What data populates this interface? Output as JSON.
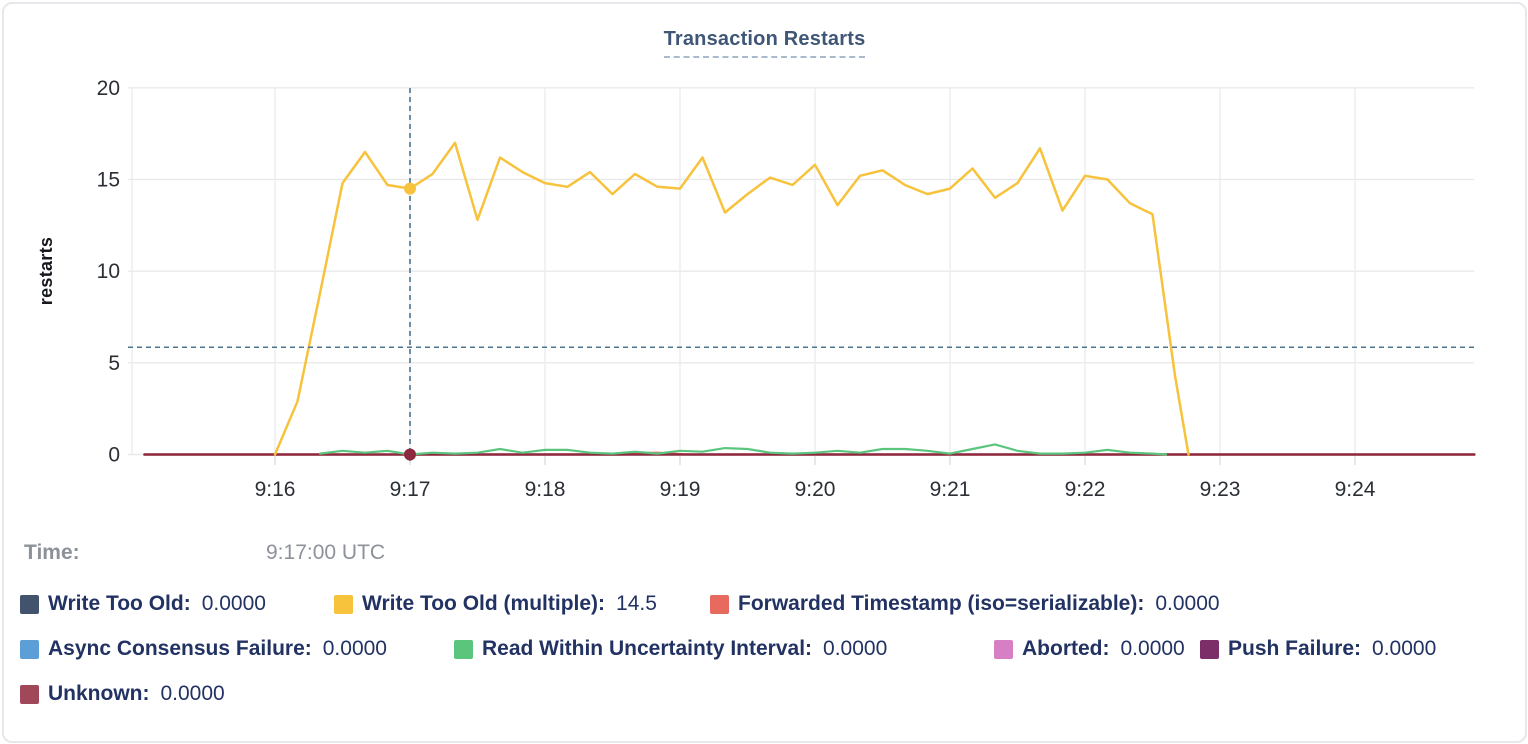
{
  "chart_data": {
    "type": "line",
    "title": "Transaction Restarts",
    "ylabel": "restarts",
    "ylim": [
      0,
      20
    ],
    "y_ticks": [
      0,
      5,
      10,
      15,
      20
    ],
    "x_ticks": [
      {
        "label": "9:16",
        "t": 60
      },
      {
        "label": "9:17",
        "t": 120
      },
      {
        "label": "9:18",
        "t": 180
      },
      {
        "label": "9:19",
        "t": 240
      },
      {
        "label": "9:20",
        "t": 300
      },
      {
        "label": "9:21",
        "t": 360
      },
      {
        "label": "9:22",
        "t": 420
      },
      {
        "label": "9:23",
        "t": 480
      },
      {
        "label": "9:24",
        "t": 540
      }
    ],
    "x_time_origin": "9:15:00 UTC",
    "grid": true,
    "legend_position": "bottom",
    "draw_order": [
      0,
      3,
      5,
      6,
      2,
      7,
      4,
      1
    ],
    "series": [
      {
        "name": "Write Too Old",
        "color": "#43536E",
        "stroke_width": 2,
        "points": [
          [
            2,
            0
          ],
          [
            593,
            0
          ]
        ]
      },
      {
        "name": "Write Too Old (multiple)",
        "color": "#F7C23C",
        "stroke_width": 2.5,
        "points": [
          [
            60,
            0
          ],
          [
            70,
            2.9
          ],
          [
            80,
            8.8
          ],
          [
            90,
            14.8
          ],
          [
            100,
            16.5
          ],
          [
            110,
            14.7
          ],
          [
            120,
            14.5
          ],
          [
            130,
            15.3
          ],
          [
            140,
            17
          ],
          [
            150,
            12.8
          ],
          [
            160,
            16.2
          ],
          [
            170,
            15.4
          ],
          [
            180,
            14.8
          ],
          [
            190,
            14.6
          ],
          [
            200,
            15.4
          ],
          [
            210,
            14.2
          ],
          [
            220,
            15.3
          ],
          [
            230,
            14.6
          ],
          [
            240,
            14.5
          ],
          [
            250,
            16.2
          ],
          [
            260,
            13.2
          ],
          [
            270,
            14.2
          ],
          [
            280,
            15.1
          ],
          [
            290,
            14.7
          ],
          [
            300,
            15.8
          ],
          [
            310,
            13.6
          ],
          [
            320,
            15.2
          ],
          [
            330,
            15.5
          ],
          [
            340,
            14.7
          ],
          [
            350,
            14.2
          ],
          [
            360,
            14.5
          ],
          [
            370,
            15.6
          ],
          [
            380,
            14
          ],
          [
            390,
            14.8
          ],
          [
            400,
            16.7
          ],
          [
            410,
            13.3
          ],
          [
            420,
            15.2
          ],
          [
            430,
            15
          ],
          [
            440,
            13.7
          ],
          [
            450,
            13.1
          ],
          [
            460,
            4.3
          ],
          [
            466,
            0
          ]
        ]
      },
      {
        "name": "Forwarded Timestamp (iso=serializable)",
        "color": "#E8695D",
        "stroke_width": 2.2,
        "points": [
          [
            2,
            0
          ],
          [
            216,
            0
          ],
          [
            222,
            0.08
          ],
          [
            230,
            0.1
          ],
          [
            238,
            0.04
          ],
          [
            244,
            0
          ],
          [
            593,
            0
          ]
        ]
      },
      {
        "name": "Async Consensus Failure",
        "color": "#5C9FD6",
        "stroke_width": 2,
        "points": [
          [
            2,
            0
          ],
          [
            593,
            0
          ]
        ]
      },
      {
        "name": "Read Within Uncertainty Interval",
        "color": "#5BC57D",
        "stroke_width": 2.2,
        "points": [
          [
            80,
            0.05
          ],
          [
            90,
            0.2
          ],
          [
            100,
            0.1
          ],
          [
            110,
            0.2
          ],
          [
            120,
            0
          ],
          [
            130,
            0.1
          ],
          [
            140,
            0.05
          ],
          [
            150,
            0.1
          ],
          [
            160,
            0.3
          ],
          [
            170,
            0.1
          ],
          [
            180,
            0.25
          ],
          [
            190,
            0.25
          ],
          [
            200,
            0.1
          ],
          [
            210,
            0.05
          ],
          [
            220,
            0.15
          ],
          [
            230,
            0.05
          ],
          [
            240,
            0.2
          ],
          [
            250,
            0.15
          ],
          [
            260,
            0.35
          ],
          [
            270,
            0.3
          ],
          [
            280,
            0.1
          ],
          [
            290,
            0.05
          ],
          [
            300,
            0.1
          ],
          [
            310,
            0.2
          ],
          [
            320,
            0.1
          ],
          [
            330,
            0.3
          ],
          [
            340,
            0.3
          ],
          [
            350,
            0.2
          ],
          [
            360,
            0.05
          ],
          [
            370,
            0.3
          ],
          [
            380,
            0.55
          ],
          [
            390,
            0.2
          ],
          [
            400,
            0.05
          ],
          [
            410,
            0.05
          ],
          [
            420,
            0.1
          ],
          [
            430,
            0.25
          ],
          [
            440,
            0.1
          ],
          [
            450,
            0.05
          ],
          [
            456,
            0
          ]
        ]
      },
      {
        "name": "Aborted",
        "color": "#D77FC4",
        "stroke_width": 2,
        "points": [
          [
            2,
            0
          ],
          [
            593,
            0
          ]
        ]
      },
      {
        "name": "Push Failure",
        "color": "#7B2E67",
        "stroke_width": 2,
        "points": [
          [
            2,
            0
          ],
          [
            593,
            0
          ]
        ]
      },
      {
        "name": "Unknown",
        "color": "#A04759",
        "line_color": "#8E2A40",
        "stroke_width": 2.6,
        "points": [
          [
            2,
            0
          ],
          [
            593,
            0
          ]
        ]
      }
    ],
    "crosshair": {
      "t": 120,
      "y_value": 5.85,
      "color": "#4D7590",
      "time_label": "9:17:00 UTC"
    },
    "hover_dots": [
      {
        "series": "Write Too Old (multiple)",
        "t": 120,
        "value": 14.5
      },
      {
        "series": "Unknown",
        "t": 120,
        "value": 0
      }
    ]
  },
  "tooltip": {
    "time_label": "Time:",
    "time_value": "9:17:00 UTC",
    "rows": [
      [
        {
          "label": "Write Too Old:",
          "value": "0.0000",
          "color": "#43536E"
        },
        {
          "label": "Write Too Old (multiple):",
          "value": "14.5",
          "color": "#F7C23C"
        },
        {
          "label": "Forwarded Timestamp (iso=serializable):",
          "value": "0.0000",
          "color": "#E8695D"
        }
      ],
      [
        {
          "label": "Async Consensus Failure:",
          "value": "0.0000",
          "color": "#5C9FD6"
        },
        {
          "label": "Read Within Uncertainty Interval:",
          "value": "0.0000",
          "color": "#5BC57D"
        },
        {
          "label": "Aborted:",
          "value": "0.0000",
          "color": "#D77FC4"
        },
        {
          "label": "Push Failure:",
          "value": "0.0000",
          "color": "#7B2E67"
        }
      ],
      [
        {
          "label": "Unknown:",
          "value": "0.0000",
          "color": "#A04759"
        }
      ]
    ]
  }
}
